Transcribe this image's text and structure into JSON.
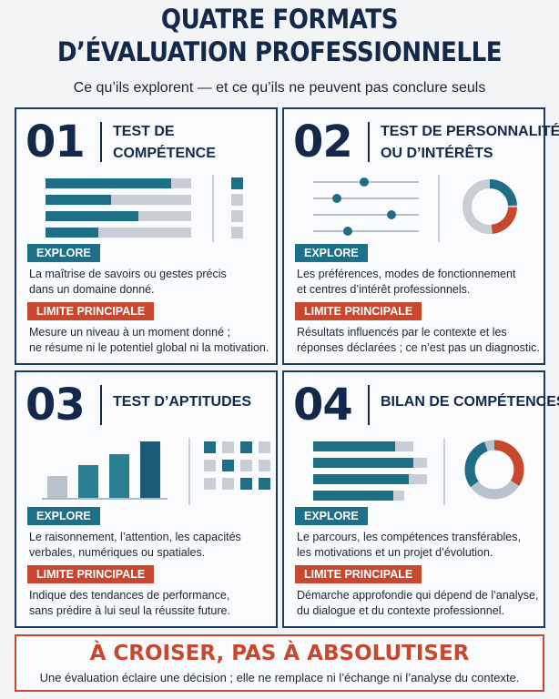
{
  "header": {
    "title": [
      "QUATRE FORMATS",
      "D’ÉVALUATION PROFESSIONNELLE"
    ],
    "subtitle": "Ce qu’ils explorent — et ce qu’ils ne peuvent pas conclure seuls"
  },
  "cards": [
    {
      "number": "01",
      "title": [
        "TEST DE",
        "COMPÉTENCE"
      ],
      "explore_label": "EXPLORE",
      "explore_text": [
        "La maîtrise de savoirs ou gestes précis",
        "dans un domaine donné."
      ],
      "limit_label": "LIMITE PRINCIPALE",
      "limit_text": [
        "Mesure un niveau à un moment donné ;",
        "ne résume ni le potentiel global ni la motivation."
      ]
    },
    {
      "number": "02",
      "title": [
        "TEST DE PERSONNALITÉ",
        "OU D’INTÉRÊTS"
      ],
      "explore_label": "EXPLORE",
      "explore_text": [
        "Les préférences, modes de fonctionnement",
        "et centres d’intérêt professionnels."
      ],
      "limit_label": "LIMITE PRINCIPALE",
      "limit_text": [
        "Résultats influencés par le contexte et les",
        "réponses déclarées ; ce n’est pas un diagnostic."
      ]
    },
    {
      "number": "03",
      "title": [
        "TEST D’APTITUDES"
      ],
      "explore_label": "EXPLORE",
      "explore_text": [
        "Le raisonnement, l’attention, les capacités",
        "verbales, numériques ou spatiales."
      ],
      "limit_label": "LIMITE PRINCIPALE",
      "limit_text": [
        "Indique des tendances de performance,",
        "sans prédire à lui seul la réussite future."
      ]
    },
    {
      "number": "04",
      "title": [
        "BILAN DE COMPÉTENCES"
      ],
      "explore_label": "EXPLORE",
      "explore_text": [
        "Le parcours, les compétences transférables,",
        "les motivations et un projet d’évolution."
      ],
      "limit_label": "LIMITE PRINCIPALE",
      "limit_text": [
        "Démarche approfondie qui dépend de l’analyse,",
        "du dialogue et du contexte professionnel."
      ]
    }
  ],
  "footer": {
    "title": "À CROISER, PAS À ABSOLUTISER",
    "text": "Une évaluation éclaire une décision ; elle ne remplace ni l’échange ni l’analyse du contexte."
  }
}
